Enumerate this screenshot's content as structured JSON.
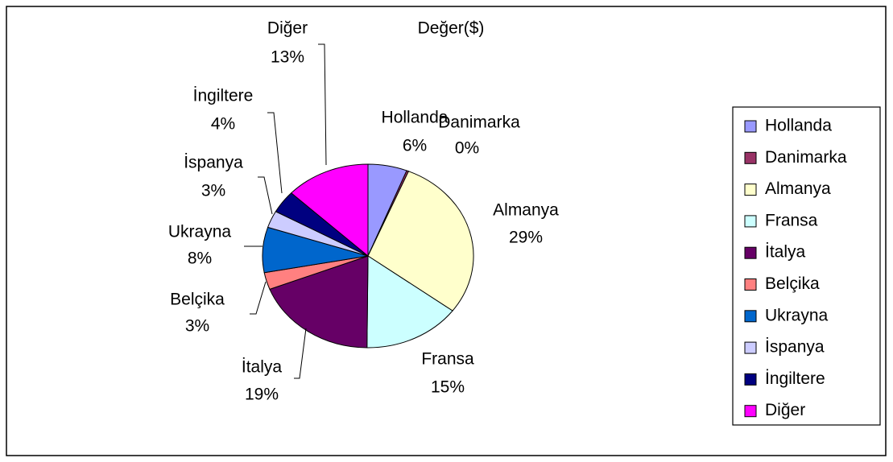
{
  "chart_data": {
    "type": "pie",
    "title": "Değer($)",
    "categories": [
      "Hollanda",
      "Danimarka",
      "Almanya",
      "Fransa",
      "İtalya",
      "Belçika",
      "Ukrayna",
      "İspanya",
      "İngiltere",
      "Diğer"
    ],
    "values": [
      6,
      0.3,
      29,
      15,
      19,
      3,
      8,
      3,
      4,
      13
    ],
    "value_labels": [
      "6%",
      "0%",
      "29%",
      "15%",
      "19%",
      "3%",
      "8%",
      "3%",
      "4%",
      "13%"
    ],
    "colors": [
      "#9999ff",
      "#993366",
      "#ffffcc",
      "#ccffff",
      "#660066",
      "#ff8080",
      "#0066cc",
      "#ccccff",
      "#000080",
      "#ff00ff"
    ],
    "legend": "right"
  }
}
